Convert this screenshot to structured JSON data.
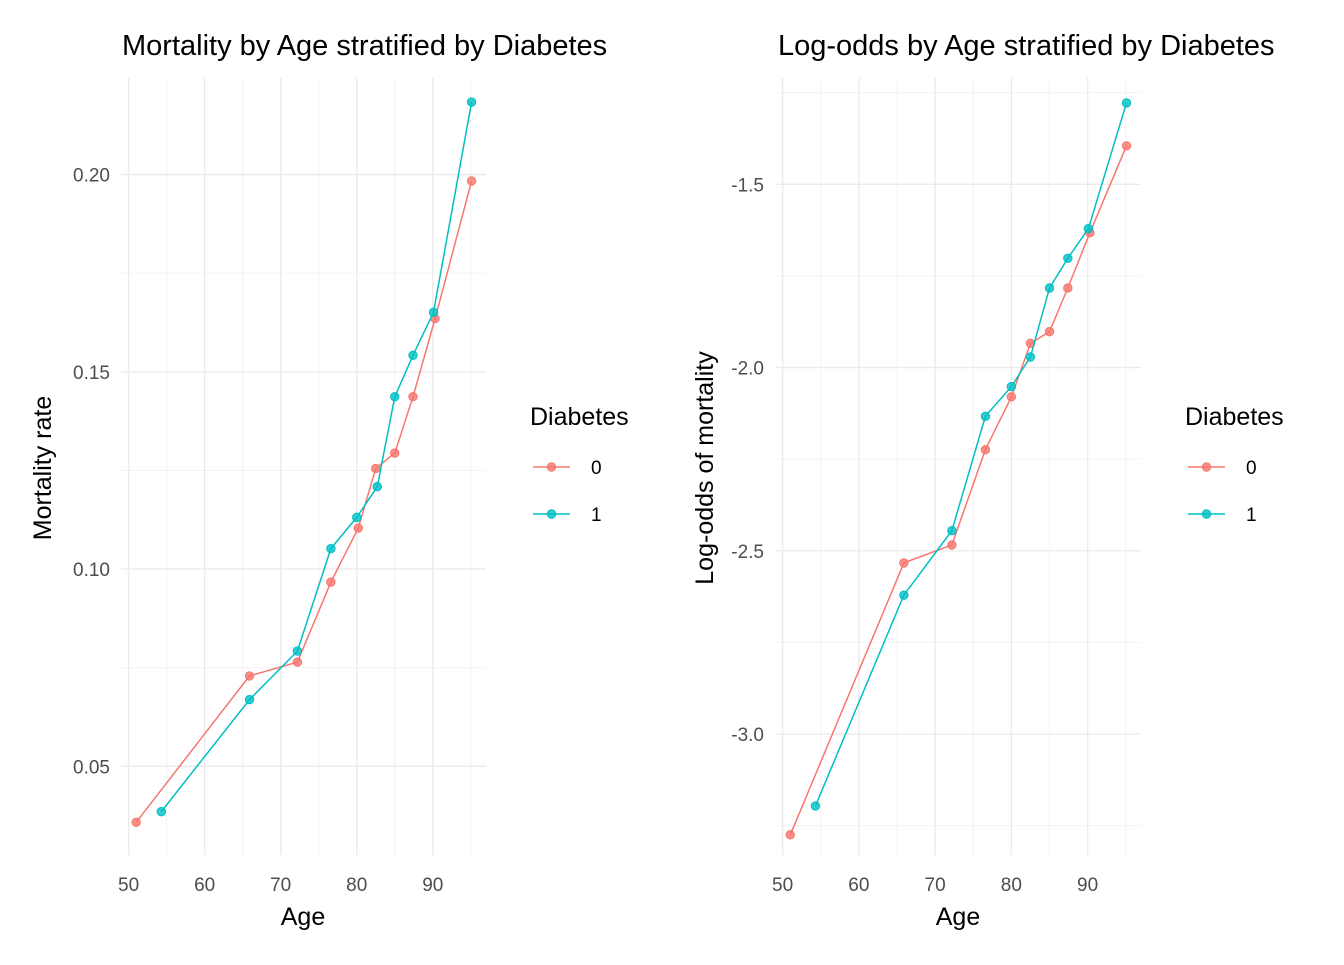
{
  "chart_data": [
    {
      "type": "line",
      "title": "Mortality by Age stratified by Diabetes",
      "xlabel": "Age",
      "ylabel": "Mortality rate",
      "xlim": [
        49,
        97
      ],
      "ylim": [
        0.0275,
        0.2245
      ],
      "xticks": [
        50,
        60,
        70,
        80,
        90
      ],
      "xtick_labels": [
        "50",
        "60",
        "70",
        "80",
        "90"
      ],
      "yticks": [
        0.05,
        0.1,
        0.15,
        0.2
      ],
      "ytick_labels": [
        "0.05",
        "0.10",
        "0.15",
        "0.20"
      ],
      "grid": true,
      "legend": {
        "title": "Diabetes",
        "position": "right"
      },
      "series": [
        {
          "name": "0",
          "color": "#F8766D",
          "x": [
            51.0,
            65.9,
            72.2,
            76.6,
            80.2,
            82.5,
            85.0,
            87.4,
            90.3,
            95.1
          ],
          "y": [
            0.0358,
            0.0729,
            0.0764,
            0.0967,
            0.1104,
            0.1255,
            0.1294,
            0.1437,
            0.1635,
            0.1984
          ]
        },
        {
          "name": "1",
          "color": "#00BFC4",
          "x": [
            54.3,
            65.9,
            72.2,
            76.6,
            80.0,
            82.7,
            85.0,
            87.4,
            90.1,
            95.1
          ],
          "y": [
            0.0385,
            0.0669,
            0.0792,
            0.1052,
            0.1131,
            0.1209,
            0.1437,
            0.1542,
            0.1651,
            0.2184
          ]
        }
      ]
    },
    {
      "type": "line",
      "title": "Log-odds by Age stratified by Diabetes",
      "xlabel": "Age",
      "ylabel": "Log-odds of mortality",
      "xlim": [
        49,
        97
      ],
      "ylim": [
        -3.33,
        -1.21
      ],
      "xticks": [
        50,
        60,
        70,
        80,
        90
      ],
      "xtick_labels": [
        "50",
        "60",
        "70",
        "80",
        "90"
      ],
      "yticks": [
        -3.0,
        -2.5,
        -2.0,
        -1.5
      ],
      "ytick_labels": [
        "-3.0",
        "-2.5",
        "-2.0",
        "-1.5"
      ],
      "grid": true,
      "legend": {
        "title": "Diabetes",
        "position": "right"
      },
      "series": [
        {
          "name": "0",
          "color": "#F8766D",
          "x": [
            51.0,
            65.9,
            72.2,
            76.6,
            80.0,
            82.5,
            85.0,
            87.4,
            90.3,
            95.1
          ],
          "y": [
            -3.275,
            -2.533,
            -2.484,
            -2.224,
            -2.08,
            -1.934,
            -1.902,
            -1.783,
            -1.632,
            -1.395
          ]
        },
        {
          "name": "1",
          "color": "#00BFC4",
          "x": [
            54.3,
            65.9,
            72.2,
            76.6,
            80.0,
            82.5,
            85.0,
            87.4,
            90.1,
            95.1
          ],
          "y": [
            -3.196,
            -2.621,
            -2.445,
            -2.133,
            -2.052,
            -1.971,
            -1.783,
            -1.702,
            -1.621,
            -1.278
          ]
        }
      ]
    }
  ]
}
